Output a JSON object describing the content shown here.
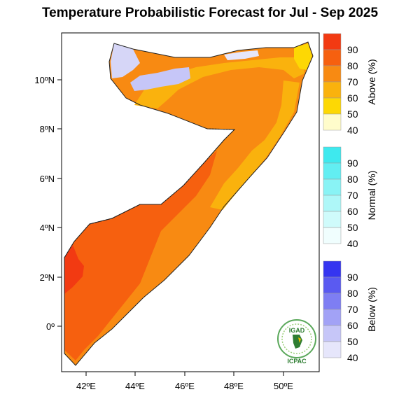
{
  "title": "Temperature Probabilistic Forecast for Jul - Sep 2025",
  "map": {
    "lat_ticks": [
      "10ºN",
      "8ºN",
      "6ºN",
      "4ºN",
      "2ºN",
      "0º"
    ],
    "lon_ticks": [
      "42ºE",
      "44ºE",
      "46ºE",
      "48ºE",
      "50ºE"
    ]
  },
  "legend": {
    "above": {
      "title": "Above (%)",
      "levels": [
        "90",
        "80",
        "70",
        "60",
        "50",
        "40"
      ],
      "colors": [
        "#f23a12",
        "#f6600f",
        "#f88a12",
        "#fab20d",
        "#fdd804",
        "#fffccb"
      ]
    },
    "normal": {
      "title": "Normal (%)",
      "levels": [
        "90",
        "80",
        "70",
        "60",
        "50",
        "40"
      ],
      "colors": [
        "#3ee9ee",
        "#62eef2",
        "#89f3f5",
        "#aef7f8",
        "#cffbfb",
        "#f0fefe"
      ]
    },
    "below": {
      "title": "Below (%)",
      "levels": [
        "90",
        "80",
        "70",
        "60",
        "50",
        "40"
      ],
      "colors": [
        "#3535f0",
        "#5a5af1",
        "#7e7ef3",
        "#a2a2f6",
        "#c6c6f8",
        "#e6e6fb"
      ]
    }
  },
  "logo": {
    "top_text": "IGAD",
    "bottom_text": "ICPAC"
  }
}
